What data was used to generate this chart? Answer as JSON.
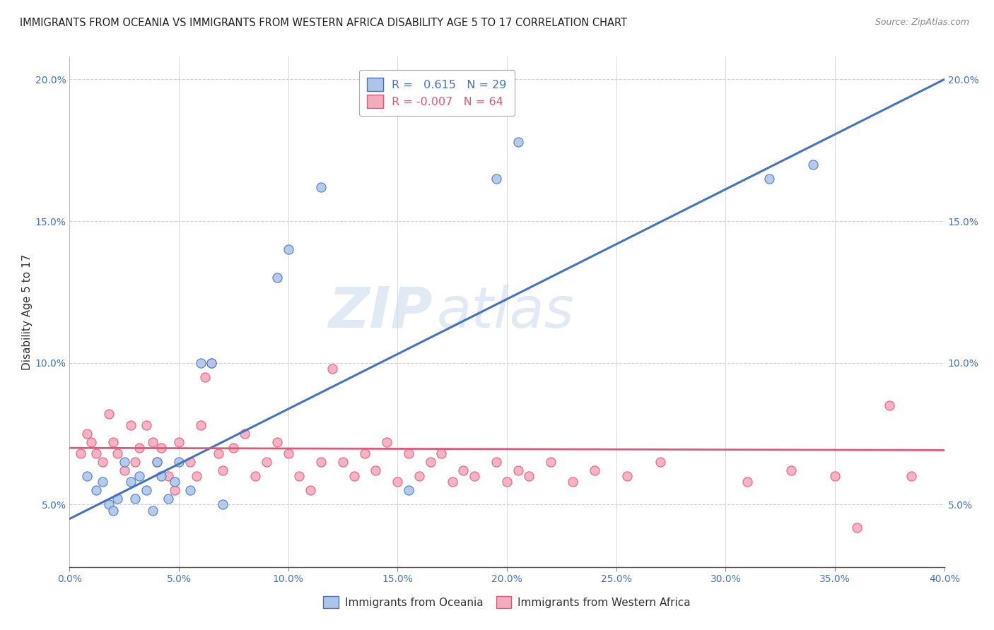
{
  "title": "IMMIGRANTS FROM OCEANIA VS IMMIGRANTS FROM WESTERN AFRICA DISABILITY AGE 5 TO 17 CORRELATION CHART",
  "source": "Source: ZipAtlas.com",
  "ylabel": "Disability Age 5 to 17",
  "r_oceania": 0.615,
  "n_oceania": 29,
  "r_western_africa": -0.007,
  "n_western_africa": 64,
  "color_oceania": "#adc6e8",
  "color_western_africa": "#f5abbe",
  "color_line_oceania": "#4472c4",
  "color_line_western_africa": "#e05878",
  "xmin": 0.0,
  "xmax": 0.4,
  "ymin": 0.028,
  "ymax": 0.208,
  "watermark_zip": "ZIP",
  "watermark_atlas": "atlas",
  "legend_labels": [
    "Immigrants from Oceania",
    "Immigrants from Western Africa"
  ],
  "oceania_x": [
    0.008,
    0.012,
    0.015,
    0.018,
    0.02,
    0.022,
    0.025,
    0.028,
    0.03,
    0.032,
    0.035,
    0.038,
    0.04,
    0.042,
    0.045,
    0.048,
    0.05,
    0.055,
    0.06,
    0.065,
    0.07,
    0.095,
    0.1,
    0.115,
    0.155,
    0.195,
    0.205,
    0.32,
    0.34
  ],
  "oceania_y": [
    0.06,
    0.055,
    0.058,
    0.05,
    0.048,
    0.052,
    0.065,
    0.058,
    0.052,
    0.06,
    0.055,
    0.048,
    0.065,
    0.06,
    0.052,
    0.058,
    0.065,
    0.055,
    0.1,
    0.1,
    0.05,
    0.13,
    0.14,
    0.162,
    0.055,
    0.165,
    0.178,
    0.165,
    0.17
  ],
  "western_africa_x": [
    0.005,
    0.008,
    0.01,
    0.012,
    0.015,
    0.018,
    0.02,
    0.022,
    0.025,
    0.028,
    0.03,
    0.032,
    0.035,
    0.038,
    0.04,
    0.042,
    0.045,
    0.048,
    0.05,
    0.055,
    0.058,
    0.06,
    0.062,
    0.065,
    0.068,
    0.07,
    0.075,
    0.08,
    0.085,
    0.09,
    0.095,
    0.1,
    0.105,
    0.11,
    0.115,
    0.12,
    0.125,
    0.13,
    0.135,
    0.14,
    0.145,
    0.15,
    0.155,
    0.16,
    0.165,
    0.17,
    0.175,
    0.18,
    0.185,
    0.195,
    0.2,
    0.205,
    0.21,
    0.22,
    0.23,
    0.24,
    0.255,
    0.27,
    0.31,
    0.33,
    0.35,
    0.36,
    0.375,
    0.385
  ],
  "western_africa_y": [
    0.068,
    0.075,
    0.072,
    0.068,
    0.065,
    0.082,
    0.072,
    0.068,
    0.062,
    0.078,
    0.065,
    0.07,
    0.078,
    0.072,
    0.065,
    0.07,
    0.06,
    0.055,
    0.072,
    0.065,
    0.06,
    0.078,
    0.095,
    0.1,
    0.068,
    0.062,
    0.07,
    0.075,
    0.06,
    0.065,
    0.072,
    0.068,
    0.06,
    0.055,
    0.065,
    0.098,
    0.065,
    0.06,
    0.068,
    0.062,
    0.072,
    0.058,
    0.068,
    0.06,
    0.065,
    0.068,
    0.058,
    0.062,
    0.06,
    0.065,
    0.058,
    0.062,
    0.06,
    0.065,
    0.058,
    0.062,
    0.06,
    0.065,
    0.058,
    0.062,
    0.06,
    0.042,
    0.085,
    0.06
  ]
}
